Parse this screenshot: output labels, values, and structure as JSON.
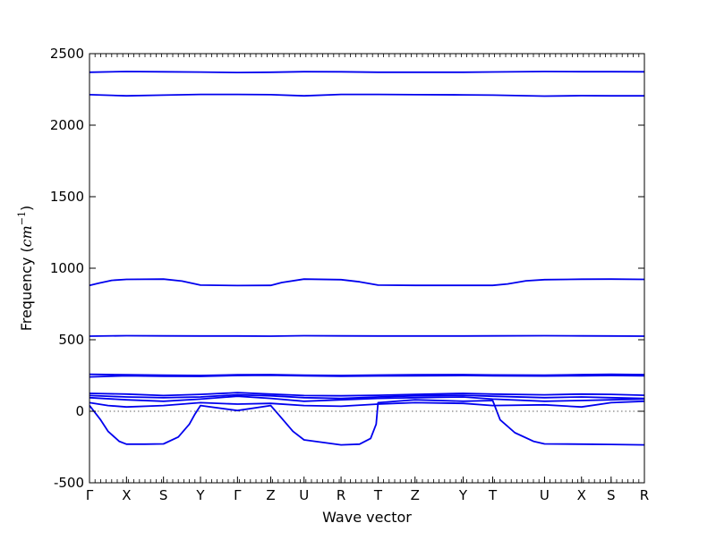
{
  "chart_data": {
    "type": "line",
    "title": "",
    "xlabel": "Wave vector",
    "ylabel": "Frequency ($cm^{-1}$)",
    "ylabel_text": "Frequency (",
    "ylabel_unit": "cm",
    "ylabel_exp": "−1",
    "ylabel_close": ")",
    "ylim": [
      -500,
      2500
    ],
    "yticks": [
      -500,
      0,
      500,
      1000,
      1500,
      2000,
      2500
    ],
    "xlim": [
      0,
      15
    ],
    "grid": false,
    "high_symmetry_points": [
      {
        "label": "Γ",
        "x": 0
      },
      {
        "label": "X",
        "x": 1
      },
      {
        "label": "S",
        "x": 2
      },
      {
        "label": "Y",
        "x": 3
      },
      {
        "label": "Γ",
        "x": 4
      },
      {
        "label": "Z",
        "x": 4.9
      },
      {
        "label": "U",
        "x": 5.8
      },
      {
        "label": "R",
        "x": 6.8
      },
      {
        "label": "T",
        "x": 7.8
      },
      {
        "label": "Z",
        "x": 8.8
      },
      {
        "label": "Y",
        "x": 10.1
      },
      {
        "label": "T",
        "x": 10.9
      },
      {
        "label": "U",
        "x": 12.3
      },
      {
        "label": "X",
        "x": 13.3
      },
      {
        "label": "S",
        "x": 14.1
      },
      {
        "label": "R",
        "x": 15
      }
    ],
    "zero_line": 0,
    "series": [
      {
        "x": [
          0,
          1,
          2,
          3,
          4,
          4.9,
          5.8,
          6.8,
          7.8,
          8.8,
          10.1,
          10.9,
          12.3,
          13.3,
          14.1,
          15
        ],
        "y": [
          2370,
          2375,
          2373,
          2371,
          2368,
          2370,
          2374,
          2373,
          2370,
          2370,
          2370,
          2372,
          2375,
          2374,
          2374,
          2373
        ]
      },
      {
        "x": [
          0,
          1,
          2,
          3,
          4,
          4.9,
          5.8,
          6.8,
          7.8,
          8.8,
          10.1,
          10.9,
          12.3,
          13.3,
          14.1,
          15
        ],
        "y": [
          2213,
          2205,
          2210,
          2215,
          2215,
          2213,
          2205,
          2215,
          2215,
          2213,
          2212,
          2210,
          2203,
          2206,
          2205,
          2205
        ]
      },
      {
        "x": [
          0,
          0.25,
          0.6,
          1,
          2,
          2.5,
          3,
          4,
          4.9,
          5.2,
          5.8,
          6.8,
          7.3,
          7.8,
          8.8,
          10.1,
          10.9,
          11.3,
          11.8,
          12.3,
          13.3,
          14.1,
          15
        ],
        "y": [
          880,
          895,
          915,
          922,
          924,
          910,
          882,
          879,
          880,
          900,
          924,
          920,
          905,
          882,
          880,
          880,
          880,
          890,
          912,
          920,
          923,
          924,
          922
        ]
      },
      {
        "x": [
          0,
          1,
          2,
          3,
          4,
          4.9,
          5.8,
          6.8,
          7.8,
          8.8,
          10.1,
          10.9,
          12.3,
          13.3,
          14.1,
          15
        ],
        "y": [
          525,
          528,
          527,
          526,
          526,
          525,
          528,
          527,
          526,
          526,
          526,
          527,
          528,
          527,
          526,
          525
        ]
      },
      {
        "x": [
          0,
          1,
          2,
          3,
          4,
          4.9,
          5.8,
          6.8,
          7.8,
          8.8,
          10.1,
          10.9,
          12.3,
          13.3,
          14.1,
          15
        ],
        "y": [
          258,
          255,
          252,
          250,
          255,
          256,
          252,
          250,
          253,
          255,
          256,
          254,
          252,
          256,
          258,
          256
        ]
      },
      {
        "x": [
          0,
          1,
          2,
          3,
          4,
          4.9,
          5.8,
          6.8,
          7.8,
          8.8,
          10.1,
          10.9,
          12.3,
          13.3,
          14.1,
          15
        ],
        "y": [
          240,
          248,
          245,
          244,
          250,
          252,
          248,
          245,
          247,
          248,
          250,
          248,
          246,
          248,
          250,
          248
        ]
      },
      {
        "x": [
          0,
          1,
          2,
          3,
          4,
          4.9,
          5.8,
          6.8,
          7.8,
          8.8,
          10.1,
          10.9,
          12.3,
          13.3,
          14.1,
          15
        ],
        "y": [
          125,
          120,
          110,
          118,
          130,
          120,
          110,
          108,
          112,
          118,
          125,
          120,
          115,
          120,
          118,
          112
        ]
      },
      {
        "x": [
          0,
          1,
          2,
          3,
          4,
          4.9,
          5.8,
          6.8,
          7.8,
          8.8,
          10.1,
          10.9,
          12.3,
          13.3,
          14.1,
          15
        ],
        "y": [
          110,
          100,
          95,
          100,
          115,
          108,
          95,
          90,
          100,
          108,
          112,
          105,
          95,
          100,
          95,
          90
        ]
      },
      {
        "x": [
          0,
          1,
          2,
          3,
          4,
          4.9,
          5.8,
          6.8,
          7.8,
          8.8,
          10.1,
          10.9,
          12.3,
          13.3,
          14.1,
          15
        ],
        "y": [
          95,
          80,
          70,
          85,
          105,
          90,
          70,
          80,
          90,
          95,
          100,
          85,
          70,
          75,
          80,
          85
        ]
      },
      {
        "x": [
          0,
          0.5,
          1,
          2,
          3,
          4,
          4.9,
          5.8,
          6.8,
          7.8,
          8.8,
          10.1,
          10.9,
          12.3,
          13.3,
          14.1,
          15
        ],
        "y": [
          60,
          40,
          30,
          40,
          60,
          50,
          55,
          40,
          35,
          50,
          60,
          55,
          40,
          45,
          30,
          60,
          70
        ]
      },
      {
        "x": [
          0,
          0.3,
          0.5,
          0.8,
          1,
          1.5,
          2,
          2.4,
          2.7,
          2.85,
          3,
          4,
          4.9,
          5.1,
          5.5,
          5.8,
          6.8,
          7.3,
          7.6,
          7.75,
          7.8,
          8.8,
          10.1,
          10.9,
          11.1,
          11.5,
          12,
          12.3,
          13.3,
          14.1,
          15
        ],
        "y": [
          40,
          -60,
          -140,
          -210,
          -230,
          -230,
          -228,
          -180,
          -90,
          -20,
          40,
          5,
          40,
          -20,
          -140,
          -200,
          -235,
          -230,
          -190,
          -90,
          60,
          80,
          70,
          75,
          -60,
          -150,
          -210,
          -228,
          -230,
          -232,
          -235
        ]
      }
    ]
  }
}
